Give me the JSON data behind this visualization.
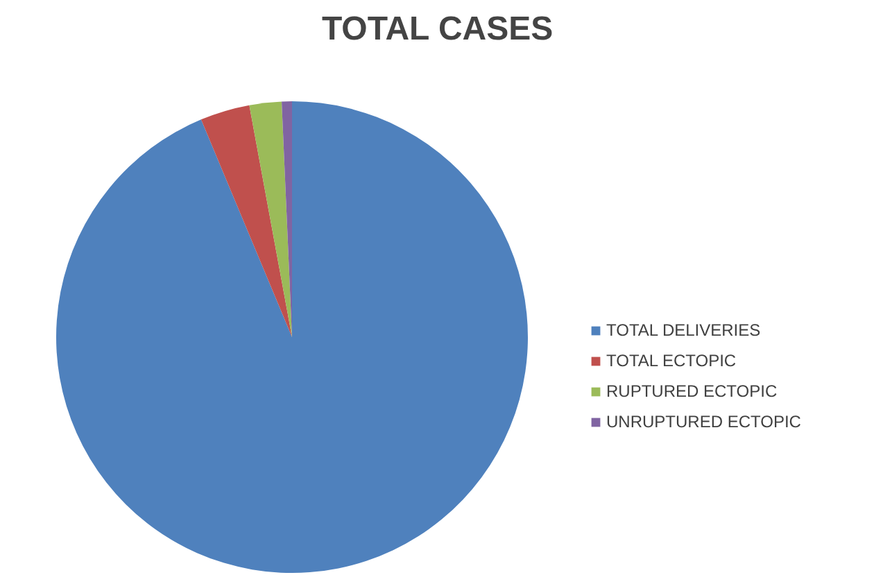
{
  "chart_data": {
    "type": "pie",
    "title": "TOTAL CASES",
    "categories": [
      "TOTAL DELIVERIES",
      "TOTAL ECTOPIC",
      "RUPTURED ECTOPIC",
      "UNRUPTURED ECTOPIC"
    ],
    "values": [
      93.7,
      3.4,
      2.2,
      0.7
    ],
    "colors": [
      "#4f81bd",
      "#c0504d",
      "#9bbb59",
      "#8064a2"
    ],
    "legend": "right"
  }
}
